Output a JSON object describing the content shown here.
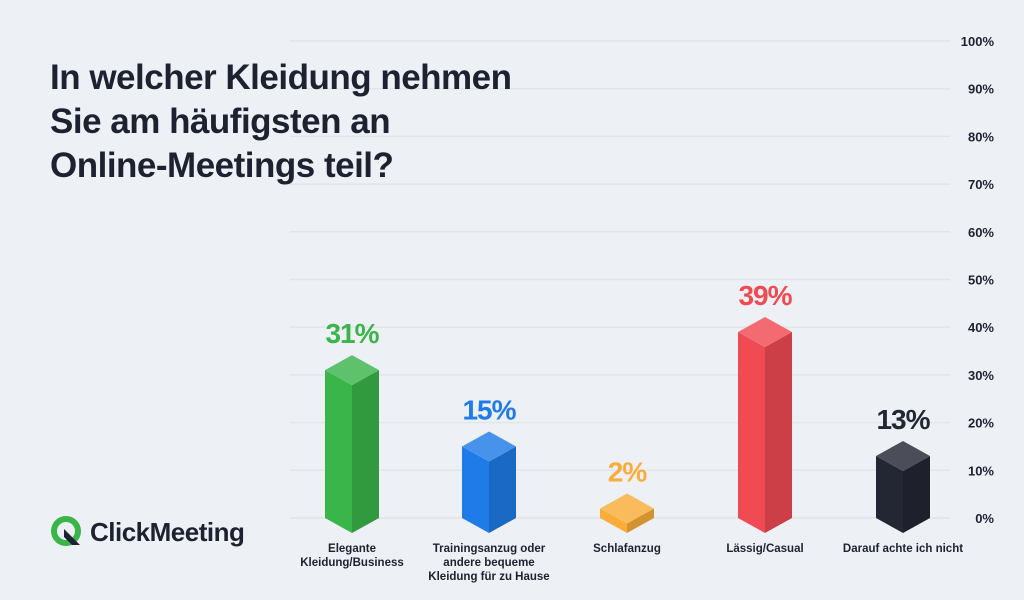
{
  "title_lines": [
    "In welcher Kleidung nehmen",
    "Sie am häufigsten an",
    "Online-Meetings teil?"
  ],
  "logo": {
    "text": "ClickMeeting",
    "icon": "clickmeeting-q-logo-icon"
  },
  "colors": {
    "background": "#edf0f5",
    "green": "#3ab54a",
    "blue": "#1f7be8",
    "orange": "#f9ac38",
    "red": "#f04a52",
    "dark": "#232733",
    "grid": "#e2e5ea"
  },
  "chart_data": {
    "type": "bar",
    "categories": [
      "Elegante Kleidung/Business",
      "Trainingsanzug oder andere bequeme Kleidung für zu Hause",
      "Schlafanzug",
      "Lässig/Casual",
      "Darauf achte ich nicht"
    ],
    "values": [
      31,
      15,
      2,
      39,
      13
    ],
    "value_labels": [
      "31%",
      "15%",
      "2%",
      "39%",
      "13%"
    ],
    "bar_colors": [
      "#3ab54a",
      "#1f7be8",
      "#f9ac38",
      "#f04a52",
      "#232733"
    ],
    "ylim": [
      0,
      100
    ],
    "y_ticks": [
      "0%",
      "10%",
      "20%",
      "30%",
      "40%",
      "50%",
      "60%",
      "70%",
      "80%",
      "90%",
      "100%"
    ],
    "title": "In welcher Kleidung nehmen Sie am häufigsten an Online-Meetings teil?",
    "xlabel": "",
    "ylabel": "",
    "grid": true,
    "axis_position": "right"
  }
}
